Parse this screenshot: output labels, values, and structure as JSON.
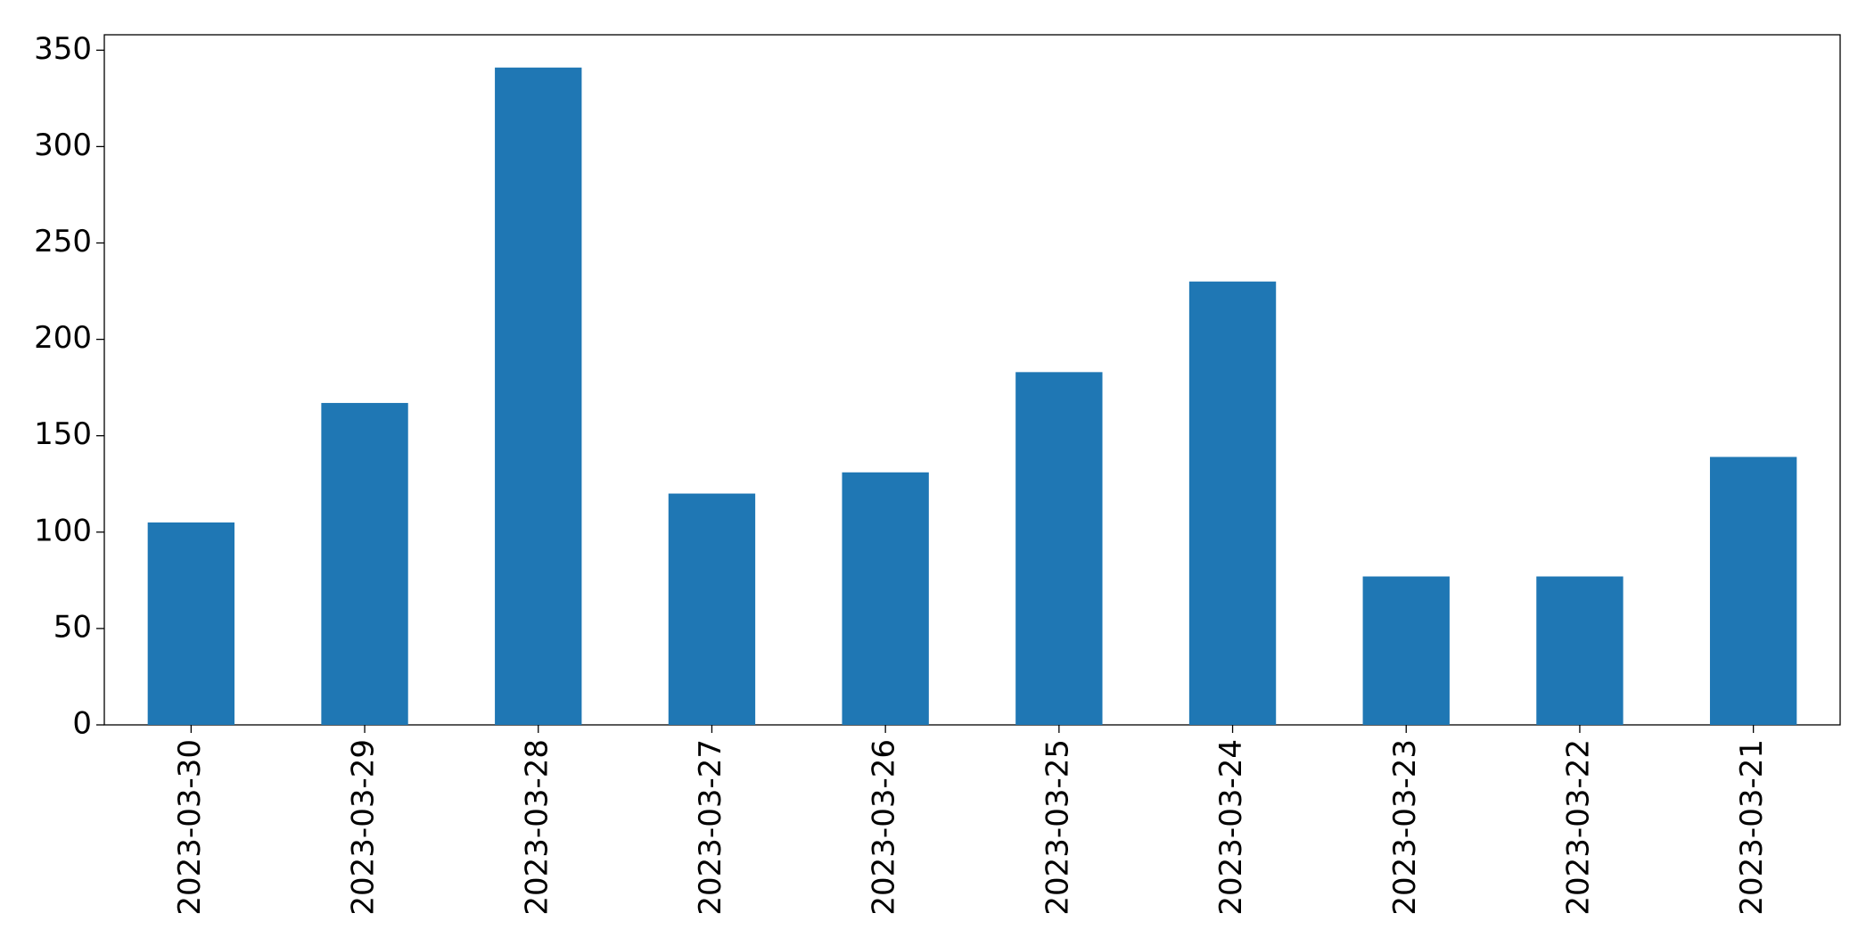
{
  "chart_data": {
    "type": "bar",
    "categories": [
      "2023-03-30",
      "2023-03-29",
      "2023-03-28",
      "2023-03-27",
      "2023-03-26",
      "2023-03-25",
      "2023-03-24",
      "2023-03-23",
      "2023-03-22",
      "2023-03-21"
    ],
    "values": [
      105,
      167,
      341,
      120,
      131,
      183,
      230,
      77,
      77,
      139
    ],
    "color": "#1f77b4",
    "ylim": [
      0,
      358
    ],
    "yticks": [
      0,
      50,
      100,
      150,
      200,
      250,
      300,
      350
    ],
    "grid": false
  }
}
